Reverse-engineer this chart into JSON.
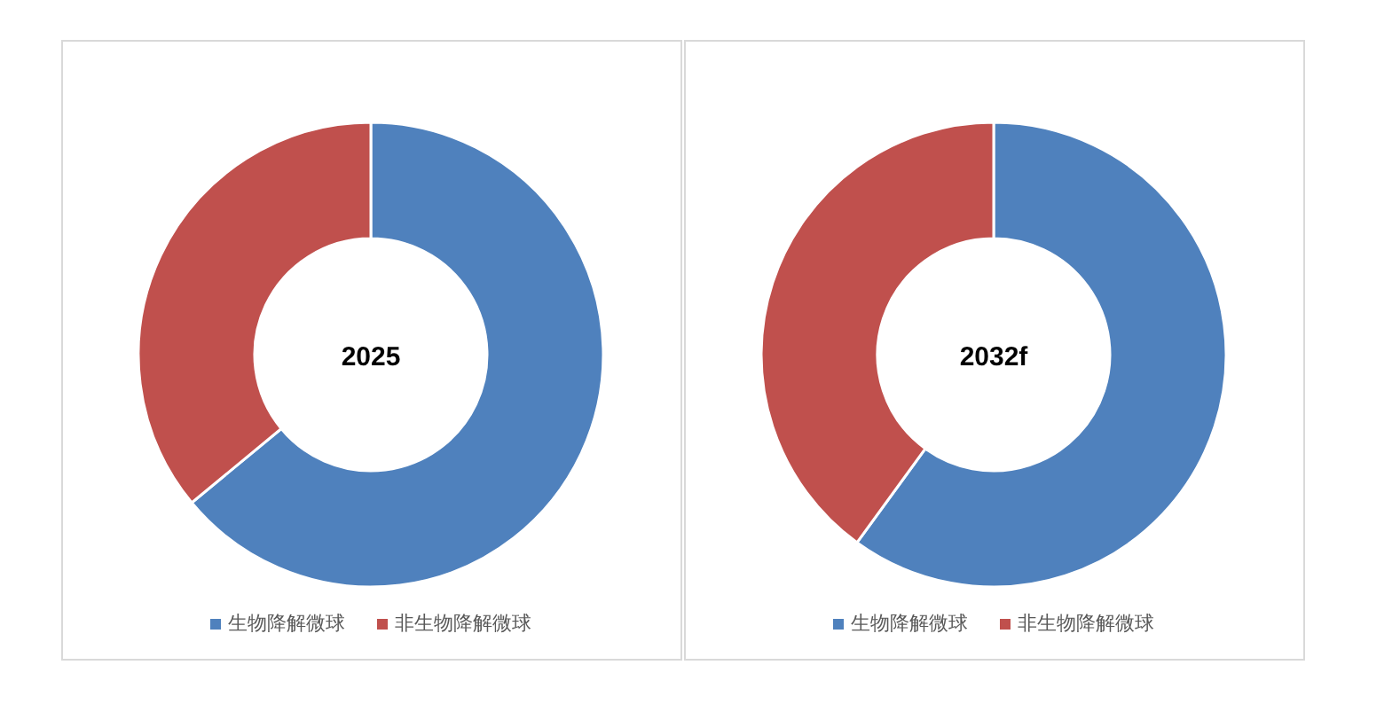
{
  "chart_data": [
    {
      "type": "donut",
      "title": "2025",
      "categories": [
        "生物降解微球",
        "非生物降解微球"
      ],
      "values": [
        64,
        36
      ],
      "colors": [
        "#4f81bd",
        "#c0504d"
      ],
      "legend": "bottom"
    },
    {
      "type": "donut",
      "title": "2032f",
      "categories": [
        "生物降解微球",
        "非生物降解微球"
      ],
      "values": [
        60,
        40
      ],
      "colors": [
        "#4f81bd",
        "#c0504d"
      ],
      "legend": "bottom"
    }
  ]
}
